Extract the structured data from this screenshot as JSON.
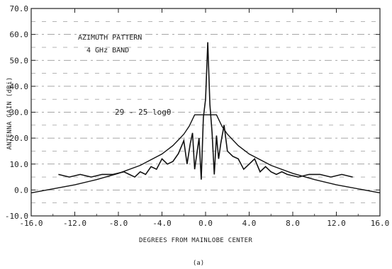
{
  "chart_data": {
    "type": "line",
    "xlabel": "DEGREES FROM MAINLOBE CENTER",
    "ylabel": "ANTENNA GAIN (dBi)",
    "xlim": [
      -16,
      16
    ],
    "ylim": [
      -10,
      70
    ],
    "xticks": [
      "-16.0",
      "-12.0",
      "-8.0",
      "-4.0",
      "0.0",
      "4.0",
      "8.0",
      "12.0",
      "16.0"
    ],
    "yticks": [
      "-10.0",
      "0.0",
      "10.0",
      "20.0",
      "30.0",
      "40.0",
      "50.0",
      "60.0",
      "70.0"
    ],
    "grid": "horizontal dashed",
    "annotations": [
      "AZIMUTH PATTERN",
      "4 GHz BAND"
    ],
    "envelope_label": "29 - 25 logθ",
    "caption": "(a)",
    "series": [
      {
        "x": [
          -16,
          -12,
          -10,
          -8,
          -6,
          -4,
          -3,
          -2,
          -1.5,
          -1,
          -0.5,
          0,
          0.5,
          1,
          1.5,
          2,
          3,
          4,
          6,
          8,
          10,
          12,
          16
        ],
        "y": [
          -1.1,
          2.0,
          4.0,
          6.4,
          9.5,
          13.9,
          17.1,
          21.5,
          24.6,
          29.0,
          29.0,
          29.0,
          29.0,
          29.0,
          24.6,
          21.5,
          17.1,
          13.9,
          9.5,
          6.4,
          4.0,
          2.0,
          -1.1
        ]
      },
      {
        "x": [
          -13.5,
          -12.5,
          -11.5,
          -10.5,
          -9.5,
          -8.5,
          -7.5,
          -7,
          -6.5,
          -6,
          -5.5,
          -5,
          -4.5,
          -4,
          -3.5,
          -3,
          -2.5,
          -2,
          -1.7,
          -1.4,
          -1.2,
          -1.0,
          -0.8,
          -0.6,
          -0.4,
          -0.2,
          0,
          0.2,
          0.4,
          0.6,
          0.8,
          1.0,
          1.2,
          1.4,
          1.7,
          2,
          2.5,
          3,
          3.5,
          4,
          4.5,
          5,
          5.5,
          6,
          6.5,
          7,
          7.5,
          8.5,
          9.5,
          10.5,
          11.5,
          12.5,
          13.5
        ],
        "y": [
          6,
          5,
          6,
          5,
          6,
          6,
          7,
          6,
          5,
          7,
          6,
          9,
          8,
          12,
          10,
          11,
          14,
          19,
          10,
          18,
          22,
          8,
          14,
          20,
          4,
          28,
          35,
          57,
          33,
          22,
          6,
          21,
          12,
          18,
          25,
          15,
          13,
          12,
          8,
          10,
          12,
          7,
          9,
          7,
          6,
          7,
          6,
          5,
          6,
          6,
          5,
          6,
          5
        ]
      }
    ]
  }
}
